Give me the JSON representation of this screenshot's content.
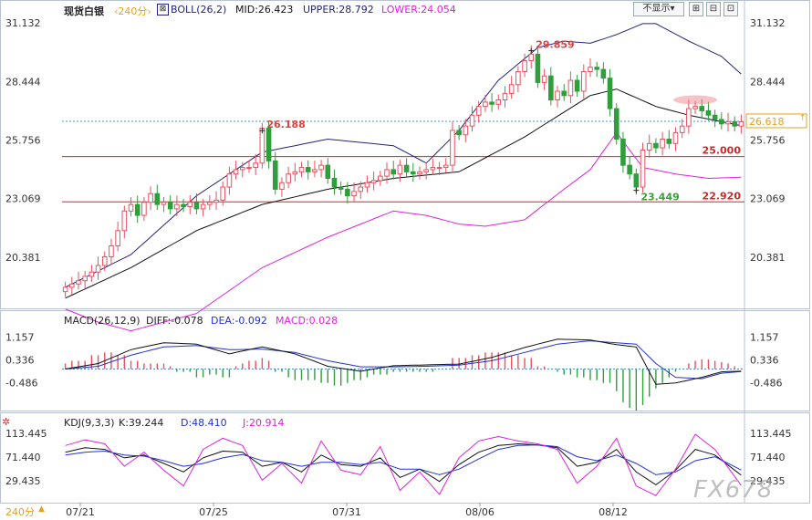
{
  "header": {
    "symbol": "现货白银",
    "period": "‹240分›",
    "boll": {
      "title": "BOLL(26,2)",
      "mid": "MID:26.423",
      "upper": "UPPER:28.792",
      "lower": "LOWER:24.054"
    },
    "display_button": "不显示▾"
  },
  "macd_header": {
    "title": "MACD(26,12,9)",
    "diff": "DIFF:-0.078",
    "dea": "DEA:-0.092",
    "macd": "MACD:0.028"
  },
  "kdj_header": {
    "title": "KDJ(9,3,3)",
    "k": "K:39.244",
    "d": "D:48.410",
    "j": "J:20.914"
  },
  "footer": {
    "period": "240分",
    "arrow": "▲",
    "watermark": "FX678"
  },
  "colors": {
    "up": "#e8525e",
    "down": "#2f9e3b",
    "mid": "#111111",
    "upper": "#23237a",
    "lower": "#e020e0",
    "dea": "#2233cc",
    "level": "#e02020"
  },
  "chart_data": [
    {
      "type": "candlestick",
      "title": "现货白银 240分 BOLL(26,2)",
      "x_tick_labels": [
        "07/21",
        "07/25",
        "07/31",
        "08/06",
        "08/12"
      ],
      "y_ticks": [
        31.132,
        28.444,
        25.756,
        23.069,
        20.381
      ],
      "ylim": [
        18.2,
        31.6
      ],
      "last_price": 26.618,
      "levels": [
        {
          "label": "25.000",
          "value": 25.0
        },
        {
          "label": "22.920",
          "value": 22.92
        }
      ],
      "annotations": [
        {
          "label": "26.188",
          "value": 26.188
        },
        {
          "label": "29.859",
          "value": 29.859
        },
        {
          "label": "23.449",
          "value": 23.449
        }
      ],
      "close": [
        19.0,
        19.15,
        19.3,
        19.5,
        19.7,
        20.0,
        20.4,
        20.9,
        21.6,
        22.5,
        22.8,
        22.3,
        22.9,
        23.3,
        22.8,
        22.9,
        22.6,
        22.8,
        22.7,
        22.9,
        22.6,
        22.8,
        22.9,
        23.0,
        23.6,
        24.2,
        24.4,
        24.5,
        24.5,
        24.7,
        26.3,
        24.8,
        23.5,
        23.8,
        24.2,
        24.3,
        24.5,
        24.3,
        24.4,
        24.6,
        24.0,
        23.6,
        23.5,
        23.2,
        23.4,
        23.6,
        23.8,
        23.9,
        24.1,
        24.4,
        24.2,
        24.6,
        24.3,
        24.2,
        24.3,
        24.4,
        24.5,
        24.5,
        24.6,
        26.2,
        26.0,
        26.4,
        26.9,
        27.3,
        27.5,
        27.4,
        27.6,
        27.9,
        28.3,
        28.9,
        29.4,
        29.7,
        28.4,
        28.7,
        27.6,
        28.0,
        27.8,
        28.5,
        28.0,
        28.9,
        29.1,
        29.0,
        28.6,
        27.2,
        25.8,
        24.6,
        24.2,
        23.6,
        25.3,
        25.6,
        25.4,
        25.8,
        25.6,
        26.1,
        26.4,
        27.2,
        27.3,
        27.1,
        26.9,
        26.7,
        26.5,
        26.6,
        26.4,
        26.6
      ],
      "series": [
        {
          "name": "MID",
          "x": [
            0,
            10,
            20,
            30,
            40,
            50,
            60,
            70,
            80,
            84,
            90,
            95,
            103
          ],
          "values": [
            18.5,
            19.9,
            21.6,
            22.8,
            23.5,
            24.0,
            24.3,
            25.9,
            27.8,
            28.1,
            27.3,
            26.9,
            26.42
          ]
        },
        {
          "name": "UPPER",
          "x": [
            0,
            10,
            20,
            30,
            40,
            50,
            55,
            60,
            66,
            72,
            76,
            80,
            84,
            88,
            90,
            95,
            100,
            103
          ],
          "values": [
            19.0,
            20.5,
            23.2,
            25.2,
            25.8,
            25.5,
            24.7,
            26.2,
            28.5,
            30.0,
            30.3,
            30.2,
            30.6,
            31.1,
            31.1,
            30.3,
            29.6,
            28.79
          ]
        },
        {
          "name": "LOWER",
          "x": [
            0,
            5,
            10,
            20,
            30,
            40,
            50,
            55,
            60,
            64,
            70,
            76,
            80,
            84,
            86,
            88,
            93,
            98,
            103
          ],
          "values": [
            18.0,
            17.4,
            17.0,
            17.8,
            19.9,
            21.3,
            22.5,
            22.3,
            21.9,
            21.8,
            22.1,
            23.5,
            24.4,
            26.1,
            25.3,
            24.5,
            24.2,
            24.0,
            24.05
          ]
        }
      ]
    },
    {
      "type": "macd",
      "title": "MACD(26,12,9)",
      "y_ticks": [
        1.157,
        0.336,
        -0.486
      ],
      "ylim": [
        -1.4,
        1.6
      ],
      "series": [
        {
          "name": "DIFF",
          "x": [
            0,
            5,
            10,
            15,
            20,
            25,
            30,
            35,
            40,
            45,
            50,
            55,
            60,
            65,
            70,
            75,
            80,
            84,
            87,
            90,
            93,
            97,
            100,
            103
          ],
          "values": [
            0.0,
            0.2,
            0.7,
            0.95,
            0.9,
            0.55,
            0.8,
            0.55,
            0.1,
            -0.08,
            0.12,
            0.15,
            0.18,
            0.42,
            0.78,
            1.08,
            1.05,
            0.88,
            0.8,
            -0.55,
            -0.5,
            -0.3,
            -0.1,
            -0.078
          ]
        },
        {
          "name": "DEA",
          "x": [
            0,
            5,
            10,
            15,
            20,
            25,
            30,
            35,
            40,
            45,
            50,
            55,
            60,
            65,
            70,
            75,
            80,
            84,
            87,
            90,
            93,
            97,
            100,
            103
          ],
          "values": [
            0.0,
            0.1,
            0.5,
            0.8,
            0.85,
            0.7,
            0.72,
            0.6,
            0.3,
            0.08,
            0.08,
            0.1,
            0.14,
            0.3,
            0.6,
            0.9,
            1.02,
            0.95,
            0.9,
            0.2,
            -0.3,
            -0.35,
            -0.15,
            -0.092
          ]
        },
        {
          "name": "MACD",
          "values": [
            0.2,
            0.3,
            0.3,
            0.3,
            0.5,
            0.5,
            0.6,
            0.6,
            0.5,
            0.5,
            0.3,
            0.3,
            0.2,
            0.2,
            0.2,
            0.2,
            0.1,
            -0.1,
            -0.1,
            -0.1,
            -0.3,
            -0.3,
            -0.2,
            -0.2,
            -0.3,
            -0.3,
            0.1,
            0.2,
            0.3,
            0.3,
            0.4,
            0.3,
            -0.1,
            -0.1,
            -0.3,
            -0.4,
            -0.4,
            -0.4,
            -0.4,
            -0.5,
            -0.5,
            -0.6,
            -0.6,
            -0.5,
            -0.4,
            -0.4,
            -0.3,
            -0.2,
            -0.2,
            -0.2,
            -0.1,
            -0.1,
            -0.1,
            -0.1,
            -0.1,
            -0.1,
            -0.1,
            0.0,
            0.0,
            0.4,
            0.4,
            0.4,
            0.5,
            0.5,
            0.6,
            0.6,
            0.6,
            0.6,
            0.5,
            0.5,
            0.4,
            0.4,
            0.1,
            0.1,
            0.0,
            -0.1,
            -0.2,
            -0.2,
            -0.3,
            -0.3,
            -0.4,
            -0.4,
            -0.5,
            -0.5,
            -0.8,
            -1.2,
            -1.4,
            -1.5,
            -1.3,
            -1.0,
            -0.7,
            -0.5,
            -0.3,
            -0.1,
            0.0,
            0.2,
            0.3,
            0.35,
            0.35,
            0.3,
            0.25,
            0.2,
            0.1,
            0.028
          ]
        }
      ]
    },
    {
      "type": "line",
      "title": "KDJ(9,3,3)",
      "y_ticks": [
        113.445,
        71.44,
        29.435
      ],
      "ylim": [
        0,
        125
      ],
      "x_tick_labels": [
        "07/21",
        "07/25",
        "07/31",
        "08/06",
        "08/12"
      ],
      "series": [
        {
          "name": "K",
          "x": [
            0,
            3,
            6,
            9,
            12,
            15,
            18,
            21,
            24,
            27,
            30,
            33,
            36,
            39,
            42,
            45,
            48,
            51,
            54,
            57,
            60,
            63,
            66,
            69,
            72,
            75,
            78,
            81,
            84,
            87,
            90,
            93,
            96,
            99,
            103
          ],
          "values": [
            80,
            88,
            85,
            70,
            75,
            60,
            45,
            70,
            82,
            80,
            55,
            62,
            45,
            75,
            58,
            55,
            70,
            35,
            50,
            28,
            58,
            80,
            92,
            95,
            93,
            88,
            55,
            62,
            85,
            45,
            22,
            48,
            85,
            75,
            39.2
          ]
        },
        {
          "name": "D",
          "x": [
            0,
            3,
            6,
            9,
            12,
            15,
            18,
            21,
            24,
            27,
            30,
            33,
            36,
            39,
            42,
            45,
            48,
            51,
            54,
            57,
            60,
            63,
            66,
            69,
            72,
            75,
            78,
            81,
            84,
            87,
            90,
            93,
            96,
            99,
            103
          ],
          "values": [
            75,
            80,
            82,
            75,
            73,
            65,
            55,
            60,
            70,
            76,
            65,
            62,
            55,
            62,
            62,
            58,
            62,
            50,
            50,
            40,
            50,
            68,
            85,
            92,
            93,
            90,
            72,
            65,
            75,
            60,
            40,
            45,
            65,
            72,
            48.4
          ]
        },
        {
          "name": "J",
          "x": [
            0,
            3,
            6,
            9,
            12,
            15,
            18,
            21,
            24,
            27,
            30,
            33,
            36,
            39,
            42,
            45,
            48,
            51,
            54,
            57,
            60,
            63,
            66,
            69,
            72,
            75,
            78,
            81,
            84,
            87,
            90,
            93,
            96,
            99,
            103
          ],
          "values": [
            92,
            102,
            95,
            55,
            80,
            48,
            20,
            85,
            105,
            92,
            30,
            60,
            25,
            100,
            48,
            40,
            90,
            12,
            45,
            5,
            70,
            100,
            108,
            100,
            95,
            85,
            25,
            55,
            105,
            20,
            3,
            50,
            112,
            85,
            20.9
          ]
        }
      ]
    }
  ]
}
